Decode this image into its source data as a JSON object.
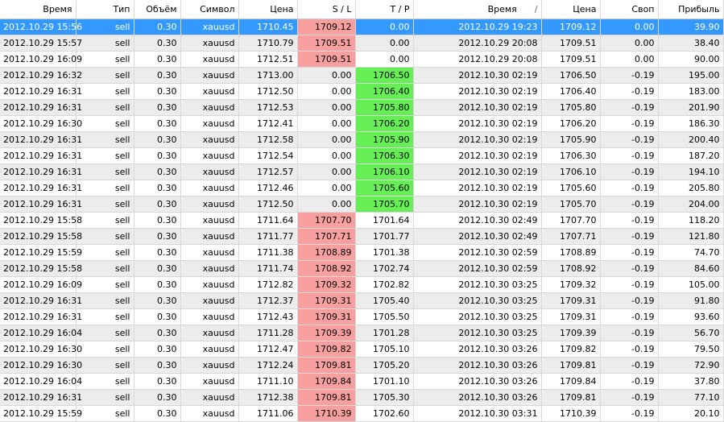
{
  "columns": {
    "time": "Время",
    "type": "Тип",
    "volume": "Объём",
    "symbol": "Символ",
    "price": "Цена",
    "sl": "S / L",
    "tp": "T / P",
    "close_time": "Время",
    "close_time_sort": "/",
    "close_price": "Цена",
    "swap": "Своп",
    "profit": "Прибыль"
  },
  "colors": {
    "selected_row": "#3399ff",
    "sl_highlight": "#f8a0a0",
    "tp_highlight": "#66ee55",
    "alt_row": "#ececec"
  },
  "rows": [
    {
      "time": "2012.10.29 15:56",
      "type": "sell",
      "volume": "0.30",
      "symbol": "xauusd",
      "price": "1710.45",
      "sl": "1709.12",
      "tp": "0.00",
      "close_time": "2012.10.29 19:23",
      "close_price": "1709.12",
      "swap": "0.00",
      "profit": "39.90",
      "hl": "sl",
      "selected": true
    },
    {
      "time": "2012.10.29 15:57",
      "type": "sell",
      "volume": "0.30",
      "symbol": "xauusd",
      "price": "1710.79",
      "sl": "1709.51",
      "tp": "0.00",
      "close_time": "2012.10.29 20:08",
      "close_price": "1709.51",
      "swap": "0.00",
      "profit": "38.40",
      "hl": "sl"
    },
    {
      "time": "2012.10.29 16:09",
      "type": "sell",
      "volume": "0.30",
      "symbol": "xauusd",
      "price": "1712.51",
      "sl": "1709.51",
      "tp": "0.00",
      "close_time": "2012.10.29 20:08",
      "close_price": "1709.51",
      "swap": "0.00",
      "profit": "90.00",
      "hl": "sl"
    },
    {
      "time": "2012.10.29 16:32",
      "type": "sell",
      "volume": "0.30",
      "symbol": "xauusd",
      "price": "1713.00",
      "sl": "0.00",
      "tp": "1706.50",
      "close_time": "2012.10.30 02:19",
      "close_price": "1706.50",
      "swap": "-0.19",
      "profit": "195.00",
      "hl": "tp"
    },
    {
      "time": "2012.10.29 16:31",
      "type": "sell",
      "volume": "0.30",
      "symbol": "xauusd",
      "price": "1712.50",
      "sl": "0.00",
      "tp": "1706.40",
      "close_time": "2012.10.30 02:19",
      "close_price": "1706.40",
      "swap": "-0.19",
      "profit": "183.00",
      "hl": "tp"
    },
    {
      "time": "2012.10.29 16:31",
      "type": "sell",
      "volume": "0.30",
      "symbol": "xauusd",
      "price": "1712.53",
      "sl": "0.00",
      "tp": "1705.80",
      "close_time": "2012.10.30 02:19",
      "close_price": "1705.80",
      "swap": "-0.19",
      "profit": "201.90",
      "hl": "tp"
    },
    {
      "time": "2012.10.29 16:30",
      "type": "sell",
      "volume": "0.30",
      "symbol": "xauusd",
      "price": "1712.41",
      "sl": "0.00",
      "tp": "1706.20",
      "close_time": "2012.10.30 02:19",
      "close_price": "1706.20",
      "swap": "-0.19",
      "profit": "186.30",
      "hl": "tp"
    },
    {
      "time": "2012.10.29 16:31",
      "type": "sell",
      "volume": "0.30",
      "symbol": "xauusd",
      "price": "1712.58",
      "sl": "0.00",
      "tp": "1705.90",
      "close_time": "2012.10.30 02:19",
      "close_price": "1705.90",
      "swap": "-0.19",
      "profit": "200.40",
      "hl": "tp"
    },
    {
      "time": "2012.10.29 16:31",
      "type": "sell",
      "volume": "0.30",
      "symbol": "xauusd",
      "price": "1712.54",
      "sl": "0.00",
      "tp": "1706.30",
      "close_time": "2012.10.30 02:19",
      "close_price": "1706.30",
      "swap": "-0.19",
      "profit": "187.20",
      "hl": "tp"
    },
    {
      "time": "2012.10.29 16:31",
      "type": "sell",
      "volume": "0.30",
      "symbol": "xauusd",
      "price": "1712.57",
      "sl": "0.00",
      "tp": "1706.10",
      "close_time": "2012.10.30 02:19",
      "close_price": "1706.10",
      "swap": "-0.19",
      "profit": "194.10",
      "hl": "tp"
    },
    {
      "time": "2012.10.29 16:31",
      "type": "sell",
      "volume": "0.30",
      "symbol": "xauusd",
      "price": "1712.46",
      "sl": "0.00",
      "tp": "1705.60",
      "close_time": "2012.10.30 02:19",
      "close_price": "1705.60",
      "swap": "-0.19",
      "profit": "205.80",
      "hl": "tp"
    },
    {
      "time": "2012.10.29 16:31",
      "type": "sell",
      "volume": "0.30",
      "symbol": "xauusd",
      "price": "1712.50",
      "sl": "0.00",
      "tp": "1705.70",
      "close_time": "2012.10.30 02:19",
      "close_price": "1705.70",
      "swap": "-0.19",
      "profit": "204.00",
      "hl": "tp"
    },
    {
      "time": "2012.10.29 15:58",
      "type": "sell",
      "volume": "0.30",
      "symbol": "xauusd",
      "price": "1711.64",
      "sl": "1707.70",
      "tp": "1701.64",
      "close_time": "2012.10.30 02:49",
      "close_price": "1707.70",
      "swap": "-0.19",
      "profit": "118.20",
      "hl": "sl"
    },
    {
      "time": "2012.10.29 15:58",
      "type": "sell",
      "volume": "0.30",
      "symbol": "xauusd",
      "price": "1711.77",
      "sl": "1707.71",
      "tp": "1701.77",
      "close_time": "2012.10.30 02:49",
      "close_price": "1707.71",
      "swap": "-0.19",
      "profit": "121.80",
      "hl": "sl"
    },
    {
      "time": "2012.10.29 15:59",
      "type": "sell",
      "volume": "0.30",
      "symbol": "xauusd",
      "price": "1711.38",
      "sl": "1708.89",
      "tp": "1701.38",
      "close_time": "2012.10.30 02:59",
      "close_price": "1708.89",
      "swap": "-0.19",
      "profit": "74.70",
      "hl": "sl"
    },
    {
      "time": "2012.10.29 15:58",
      "type": "sell",
      "volume": "0.30",
      "symbol": "xauusd",
      "price": "1711.74",
      "sl": "1708.92",
      "tp": "1702.74",
      "close_time": "2012.10.30 02:59",
      "close_price": "1708.92",
      "swap": "-0.19",
      "profit": "84.60",
      "hl": "sl"
    },
    {
      "time": "2012.10.29 16:09",
      "type": "sell",
      "volume": "0.30",
      "symbol": "xauusd",
      "price": "1712.82",
      "sl": "1709.32",
      "tp": "1702.82",
      "close_time": "2012.10.30 03:25",
      "close_price": "1709.32",
      "swap": "-0.19",
      "profit": "105.00",
      "hl": "sl"
    },
    {
      "time": "2012.10.29 16:31",
      "type": "sell",
      "volume": "0.30",
      "symbol": "xauusd",
      "price": "1712.37",
      "sl": "1709.31",
      "tp": "1705.40",
      "close_time": "2012.10.30 03:25",
      "close_price": "1709.31",
      "swap": "-0.19",
      "profit": "91.80",
      "hl": "sl"
    },
    {
      "time": "2012.10.29 16:31",
      "type": "sell",
      "volume": "0.30",
      "symbol": "xauusd",
      "price": "1712.43",
      "sl": "1709.31",
      "tp": "1705.50",
      "close_time": "2012.10.30 03:25",
      "close_price": "1709.31",
      "swap": "-0.19",
      "profit": "93.60",
      "hl": "sl"
    },
    {
      "time": "2012.10.29 16:04",
      "type": "sell",
      "volume": "0.30",
      "symbol": "xauusd",
      "price": "1711.28",
      "sl": "1709.39",
      "tp": "1701.28",
      "close_time": "2012.10.30 03:25",
      "close_price": "1709.39",
      "swap": "-0.19",
      "profit": "56.70",
      "hl": "sl"
    },
    {
      "time": "2012.10.29 16:30",
      "type": "sell",
      "volume": "0.30",
      "symbol": "xauusd",
      "price": "1712.47",
      "sl": "1709.82",
      "tp": "1705.10",
      "close_time": "2012.10.30 03:26",
      "close_price": "1709.82",
      "swap": "-0.19",
      "profit": "79.50",
      "hl": "sl"
    },
    {
      "time": "2012.10.29 16:30",
      "type": "sell",
      "volume": "0.30",
      "symbol": "xauusd",
      "price": "1712.24",
      "sl": "1709.81",
      "tp": "1705.20",
      "close_time": "2012.10.30 03:26",
      "close_price": "1709.81",
      "swap": "-0.19",
      "profit": "72.90",
      "hl": "sl"
    },
    {
      "time": "2012.10.29 16:04",
      "type": "sell",
      "volume": "0.30",
      "symbol": "xauusd",
      "price": "1711.10",
      "sl": "1709.84",
      "tp": "1701.10",
      "close_time": "2012.10.30 03:26",
      "close_price": "1709.84",
      "swap": "-0.19",
      "profit": "37.80",
      "hl": "sl"
    },
    {
      "time": "2012.10.29 16:31",
      "type": "sell",
      "volume": "0.30",
      "symbol": "xauusd",
      "price": "1712.38",
      "sl": "1709.81",
      "tp": "1705.30",
      "close_time": "2012.10.30 03:26",
      "close_price": "1709.81",
      "swap": "-0.19",
      "profit": "77.10",
      "hl": "sl"
    },
    {
      "time": "2012.10.29 15:59",
      "type": "sell",
      "volume": "0.30",
      "symbol": "xauusd",
      "price": "1711.06",
      "sl": "1710.39",
      "tp": "1702.60",
      "close_time": "2012.10.30 03:31",
      "close_price": "1710.39",
      "swap": "-0.19",
      "profit": "20.10",
      "hl": "sl"
    }
  ]
}
